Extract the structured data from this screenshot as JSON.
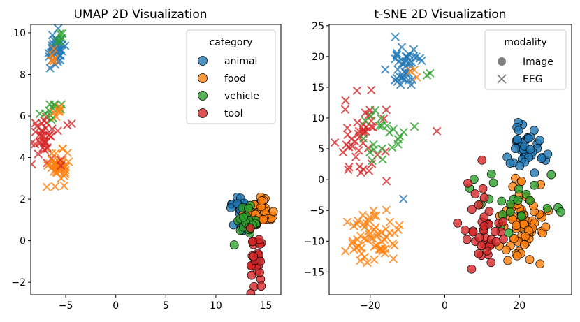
{
  "chart_data": [
    {
      "type": "scatter",
      "title": "UMAP 2D Visualization",
      "xlim": [
        -8.5,
        16.5
      ],
      "ylim": [
        -2.6,
        10.4
      ],
      "xticks": [
        -5,
        0,
        5,
        10,
        15
      ],
      "yticks": [
        -2,
        0,
        2,
        4,
        6,
        8,
        10
      ],
      "xtick_labels": [
        "−5",
        "0",
        "5",
        "10",
        "15"
      ],
      "ytick_labels": [
        "−2",
        "0",
        "2",
        "4",
        "6",
        "8",
        "10"
      ],
      "legend": {
        "title": "category",
        "position": "top-right",
        "entries": [
          {
            "label": "animal",
            "color": "#1f77b4"
          },
          {
            "label": "food",
            "color": "#ff7f0e"
          },
          {
            "label": "vehicle",
            "color": "#2ca02c"
          },
          {
            "label": "tool",
            "color": "#d62728"
          }
        ]
      },
      "clusters": [
        {
          "category": "animal",
          "modality": "EEG",
          "cx": -6.0,
          "cy": 9.1,
          "sx": 0.5,
          "sy": 0.45,
          "n": 35
        },
        {
          "category": "food",
          "modality": "EEG",
          "cx": -6.2,
          "cy": 8.9,
          "sx": 0.3,
          "sy": 0.3,
          "n": 5
        },
        {
          "category": "vehicle",
          "modality": "EEG",
          "cx": -5.6,
          "cy": 9.7,
          "sx": 0.3,
          "sy": 0.15,
          "n": 5
        },
        {
          "category": "tool",
          "modality": "EEG",
          "cx": -7.2,
          "cy": 5.2,
          "sx": 0.6,
          "sy": 0.55,
          "n": 35
        },
        {
          "category": "vehicle",
          "modality": "EEG",
          "cx": -6.5,
          "cy": 6.3,
          "sx": 0.8,
          "sy": 0.2,
          "n": 12
        },
        {
          "category": "food",
          "modality": "EEG",
          "cx": -5.5,
          "cy": 6.2,
          "sx": 0.5,
          "sy": 0.2,
          "n": 6
        },
        {
          "category": "food",
          "modality": "EEG",
          "cx": -5.6,
          "cy": 3.5,
          "sx": 0.5,
          "sy": 0.45,
          "n": 40
        },
        {
          "category": "tool",
          "modality": "EEG",
          "cx": -5.4,
          "cy": 3.6,
          "sx": 0.2,
          "sy": 0.1,
          "n": 2
        },
        {
          "category": "tool",
          "modality": "EEG",
          "cx": -4.8,
          "cy": 5.7,
          "sx": 0.2,
          "sy": 0.1,
          "n": 2
        },
        {
          "category": "animal",
          "modality": "Image",
          "cx": 12.3,
          "cy": 1.6,
          "sx": 0.5,
          "sy": 0.35,
          "n": 25
        },
        {
          "category": "food",
          "modality": "Image",
          "cx": 14.2,
          "cy": 1.2,
          "sx": 0.7,
          "sy": 0.35,
          "n": 35
        },
        {
          "category": "vehicle",
          "modality": "Image",
          "cx": 13.2,
          "cy": 0.8,
          "sx": 0.7,
          "sy": 0.35,
          "n": 25
        },
        {
          "category": "tool",
          "modality": "Image",
          "cx": 14.0,
          "cy": -1.0,
          "sx": 0.4,
          "sy": 0.75,
          "n": 30
        }
      ]
    },
    {
      "type": "scatter",
      "title": "t-SNE 2D Visualization",
      "xlim": [
        -31,
        34
      ],
      "ylim": [
        -18.7,
        25.2
      ],
      "xticks": [
        -20,
        0,
        20
      ],
      "yticks": [
        -15,
        -10,
        -5,
        0,
        5,
        10,
        15,
        20,
        25
      ],
      "xtick_labels": [
        "−20",
        "0",
        "20"
      ],
      "ytick_labels": [
        "−15",
        "−10",
        "−5",
        "0",
        "5",
        "10",
        "15",
        "20",
        "25"
      ],
      "legend": {
        "title": "modality",
        "position": "top-right",
        "entries": [
          {
            "label": "Image",
            "marker": "circle",
            "color": "#7f7f7f"
          },
          {
            "label": "EEG",
            "marker": "x",
            "color": "#7f7f7f"
          }
        ]
      },
      "clusters": [
        {
          "category": "animal",
          "modality": "EEG",
          "cx": -10.5,
          "cy": 18.5,
          "sx": 2.3,
          "sy": 2.4,
          "n": 40
        },
        {
          "category": "food",
          "modality": "EEG",
          "cx": -9.0,
          "cy": 17.5,
          "sx": 1.5,
          "sy": 0.5,
          "n": 3
        },
        {
          "category": "vehicle",
          "modality": "EEG",
          "cx": -4.2,
          "cy": 17.2,
          "sx": 0.4,
          "sy": 0.3,
          "n": 2
        },
        {
          "category": "tool",
          "modality": "EEG",
          "cx": -22.0,
          "cy": 6.0,
          "sx": 3.5,
          "sy": 3.2,
          "n": 45
        },
        {
          "category": "vehicle",
          "modality": "EEG",
          "cx": -16.5,
          "cy": 6.5,
          "sx": 3.5,
          "sy": 3.2,
          "n": 22
        },
        {
          "category": "food",
          "modality": "EEG",
          "cx": -18.5,
          "cy": -9.5,
          "sx": 3.3,
          "sy": 2.2,
          "n": 60
        },
        {
          "category": "tool",
          "modality": "EEG",
          "cx": -2.0,
          "cy": 7.8,
          "sx": 0.3,
          "sy": 0.3,
          "n": 1
        },
        {
          "category": "animal",
          "modality": "EEG",
          "cx": -11.5,
          "cy": -2.5,
          "sx": 0.4,
          "sy": 0.4,
          "n": 1
        },
        {
          "category": "animal",
          "modality": "Image",
          "cx": 22.0,
          "cy": 5.2,
          "sx": 2.3,
          "sy": 2.2,
          "n": 40
        },
        {
          "category": "food",
          "modality": "Image",
          "cx": 21.0,
          "cy": -7.0,
          "sx": 2.8,
          "sy": 3.2,
          "n": 70
        },
        {
          "category": "vehicle",
          "modality": "Image",
          "cx": 19.0,
          "cy": -3.0,
          "sx": 5.5,
          "sy": 4.0,
          "n": 25
        },
        {
          "category": "tool",
          "modality": "Image",
          "cx": 10.0,
          "cy": -9.0,
          "sx": 3.0,
          "sy": 3.8,
          "n": 40
        }
      ]
    }
  ]
}
